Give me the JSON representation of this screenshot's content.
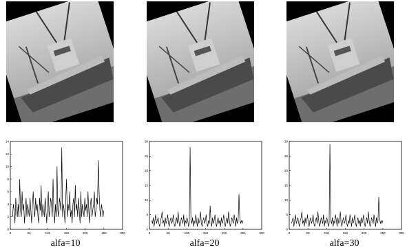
{
  "panels": [
    {
      "caption": "alfa=10"
    },
    {
      "caption": "alfa=20"
    },
    {
      "caption": "alfa=30"
    }
  ],
  "colors": {
    "ink": "#000000",
    "photo_bg": "#000000"
  },
  "chart_data": [
    {
      "type": "line",
      "title": "",
      "xlabel": "",
      "ylabel": "",
      "xlim": [
        0,
        300
      ],
      "ylim": [
        0,
        14
      ],
      "xticks": [
        "0",
        "50",
        "100",
        "150",
        "200",
        "250",
        "300"
      ],
      "yticks": [
        "0",
        "2",
        "4",
        "6",
        "8",
        "10",
        "12",
        "14"
      ],
      "grid": false,
      "series": [
        {
          "values": [
            2,
            4,
            3,
            1,
            5,
            3,
            2,
            4,
            2,
            8,
            3,
            2,
            6,
            3,
            4,
            1,
            3,
            5,
            2,
            4,
            3,
            2,
            5,
            3,
            1,
            4,
            6,
            3,
            2,
            5,
            3,
            4,
            2,
            1,
            5,
            3,
            7,
            2,
            4,
            3,
            2,
            5,
            3,
            1,
            4,
            6,
            2,
            3,
            5,
            4,
            2,
            8,
            3,
            1,
            4,
            2,
            10,
            3,
            2,
            5,
            4,
            3,
            13,
            2,
            4,
            3,
            1,
            5,
            8,
            2,
            4,
            3,
            6,
            2,
            3,
            1,
            4,
            5,
            2,
            7,
            3,
            4,
            2,
            5,
            3,
            1,
            6,
            2,
            4,
            3,
            2,
            5,
            3,
            4,
            2,
            6,
            3,
            1,
            4,
            5,
            2,
            3,
            4,
            6,
            2,
            3,
            5,
            4,
            11,
            6,
            3,
            2,
            4,
            3,
            2,
            3
          ]
        }
      ]
    },
    {
      "type": "line",
      "title": "",
      "xlabel": "",
      "ylabel": "",
      "xlim": [
        0,
        300
      ],
      "ylim": [
        0,
        30
      ],
      "xticks": [
        "0",
        "50",
        "100",
        "150",
        "200",
        "250",
        "300"
      ],
      "yticks": [
        "0",
        "5",
        "10",
        "15",
        "20",
        "25",
        "30"
      ],
      "grid": false,
      "series": [
        {
          "values": [
            3,
            2,
            4,
            1,
            3,
            5,
            2,
            3,
            4,
            2,
            1,
            3,
            4,
            6,
            2,
            3,
            1,
            4,
            2,
            3,
            5,
            2,
            1,
            3,
            4,
            2,
            3,
            5,
            2,
            1,
            3,
            4,
            2,
            6,
            3,
            1,
            2,
            4,
            3,
            2,
            5,
            1,
            3,
            2,
            4,
            3,
            1,
            2,
            28,
            3,
            2,
            4,
            1,
            3,
            2,
            5,
            3,
            1,
            4,
            2,
            3,
            6,
            2,
            1,
            3,
            4,
            2,
            3,
            5,
            2,
            1,
            3,
            2,
            8,
            3,
            1,
            4,
            2,
            3,
            5,
            2,
            1,
            3,
            4,
            2,
            3,
            1,
            4,
            2,
            3,
            5,
            2,
            1,
            3,
            4,
            2,
            6,
            3,
            1,
            2,
            4,
            3,
            2,
            5,
            3,
            1,
            4,
            2,
            3,
            12,
            4,
            2,
            3,
            2,
            3
          ]
        }
      ]
    },
    {
      "type": "line",
      "title": "",
      "xlabel": "",
      "ylabel": "",
      "xlim": [
        0,
        300
      ],
      "ylim": [
        0,
        30
      ],
      "xticks": [
        "0",
        "50",
        "100",
        "150",
        "200",
        "250",
        "300"
      ],
      "yticks": [
        "0",
        "5",
        "10",
        "15",
        "20",
        "25",
        "30"
      ],
      "grid": false,
      "series": [
        {
          "values": [
            2,
            3,
            4,
            1,
            3,
            5,
            2,
            3,
            4,
            2,
            1,
            3,
            4,
            6,
            2,
            3,
            1,
            4,
            2,
            3,
            5,
            2,
            1,
            3,
            4,
            2,
            3,
            5,
            2,
            1,
            3,
            4,
            2,
            6,
            3,
            1,
            2,
            4,
            3,
            2,
            5,
            1,
            3,
            2,
            4,
            3,
            1,
            2,
            29,
            3,
            2,
            4,
            1,
            3,
            2,
            5,
            3,
            1,
            4,
            2,
            3,
            6,
            2,
            1,
            3,
            4,
            2,
            3,
            5,
            2,
            1,
            3,
            2,
            5,
            3,
            1,
            4,
            2,
            3,
            5,
            2,
            1,
            3,
            4,
            2,
            3,
            1,
            4,
            2,
            3,
            5,
            2,
            1,
            3,
            4,
            2,
            6,
            3,
            1,
            2,
            4,
            3,
            2,
            5,
            3,
            1,
            4,
            2,
            3,
            11,
            4,
            2,
            3,
            2,
            3
          ]
        }
      ]
    }
  ]
}
